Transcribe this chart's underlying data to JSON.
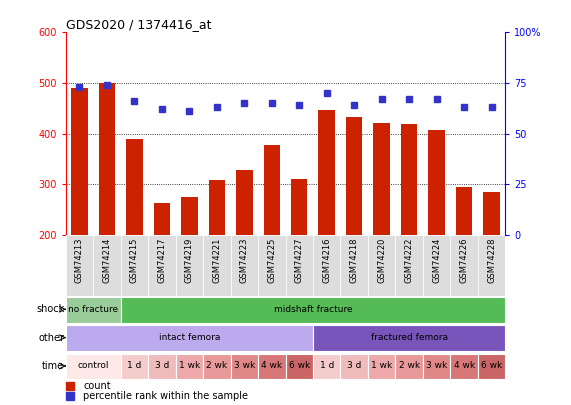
{
  "title": "GDS2020 / 1374416_at",
  "samples": [
    "GSM74213",
    "GSM74214",
    "GSM74215",
    "GSM74217",
    "GSM74219",
    "GSM74221",
    "GSM74223",
    "GSM74225",
    "GSM74227",
    "GSM74216",
    "GSM74218",
    "GSM74220",
    "GSM74222",
    "GSM74224",
    "GSM74226",
    "GSM74228"
  ],
  "counts": [
    490,
    500,
    390,
    263,
    275,
    308,
    328,
    378,
    311,
    447,
    432,
    422,
    420,
    408,
    295,
    285
  ],
  "percentile_ranks": [
    73,
    74,
    66,
    62,
    61,
    63,
    65,
    65,
    64,
    70,
    64,
    67,
    67,
    67,
    63,
    63
  ],
  "bar_color": "#cc2200",
  "dot_color": "#3333cc",
  "ylim_left": [
    200,
    600
  ],
  "ylim_right": [
    0,
    100
  ],
  "yticks_left": [
    200,
    300,
    400,
    500,
    600
  ],
  "yticks_right": [
    0,
    25,
    50,
    75,
    100
  ],
  "shock_labels": [
    {
      "text": "no fracture",
      "start": 0,
      "end": 2,
      "color": "#99cc99"
    },
    {
      "text": "midshaft fracture",
      "start": 2,
      "end": 16,
      "color": "#55bb55"
    }
  ],
  "other_labels": [
    {
      "text": "intact femora",
      "start": 0,
      "end": 9,
      "color": "#bbaaee"
    },
    {
      "text": "fractured femora",
      "start": 9,
      "end": 16,
      "color": "#7755bb"
    }
  ],
  "time_labels": [
    {
      "text": "control",
      "start": 0,
      "end": 2,
      "color": "#fde8e8"
    },
    {
      "text": "1 d",
      "start": 2,
      "end": 3,
      "color": "#f5cccc"
    },
    {
      "text": "3 d",
      "start": 3,
      "end": 4,
      "color": "#f0bbbb"
    },
    {
      "text": "1 wk",
      "start": 4,
      "end": 5,
      "color": "#eeaaaa"
    },
    {
      "text": "2 wk",
      "start": 5,
      "end": 6,
      "color": "#e89999"
    },
    {
      "text": "3 wk",
      "start": 6,
      "end": 7,
      "color": "#e08888"
    },
    {
      "text": "4 wk",
      "start": 7,
      "end": 8,
      "color": "#d87777"
    },
    {
      "text": "6 wk",
      "start": 8,
      "end": 9,
      "color": "#cc6666"
    },
    {
      "text": "1 d",
      "start": 9,
      "end": 10,
      "color": "#f5cccc"
    },
    {
      "text": "3 d",
      "start": 10,
      "end": 11,
      "color": "#f0bbbb"
    },
    {
      "text": "1 wk",
      "start": 11,
      "end": 12,
      "color": "#eeaaaa"
    },
    {
      "text": "2 wk",
      "start": 12,
      "end": 13,
      "color": "#e89999"
    },
    {
      "text": "3 wk",
      "start": 13,
      "end": 14,
      "color": "#e08888"
    },
    {
      "text": "4 wk",
      "start": 14,
      "end": 15,
      "color": "#d87777"
    },
    {
      "text": "6 wk",
      "start": 15,
      "end": 16,
      "color": "#cc6666"
    }
  ],
  "sample_bg": "#dddddd",
  "plot_bg": "#ffffff",
  "legend_count_color": "#cc2200",
  "legend_pct_color": "#3333cc"
}
